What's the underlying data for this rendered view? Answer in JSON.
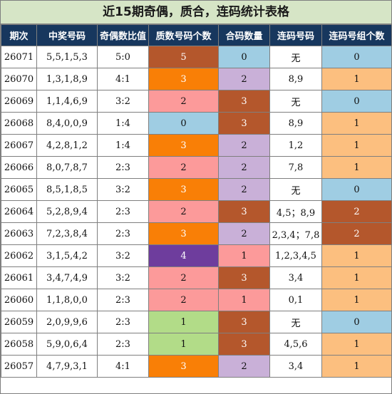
{
  "title": "近15期奇偶，质合，连码统计表格",
  "headers": [
    "期次",
    "中奖号码",
    "奇偶数比值",
    "质数号码个数",
    "合码数量",
    "连码号码",
    "连码号组个数"
  ],
  "colors": {
    "brown": "#b4572c",
    "orange": "#f97f06",
    "pink": "#fc9a9a",
    "lightblue": "#9fcde3",
    "lavender": "#c9b0d8",
    "peach": "#fcbf7f",
    "purple": "#6e3d9d",
    "green": "#b2dc88",
    "white": "#ffffff",
    "header_bg": "#17375e",
    "title_bg": "#d6e5c6"
  },
  "rows": [
    {
      "period": "26071",
      "numbers": "5,5,1,5,3",
      "ratio": "5:0",
      "prime": "5",
      "prime_color": "brown",
      "composite": "0",
      "composite_color": "lightblue",
      "consec": "无",
      "groups": "0",
      "groups_color": "lightblue"
    },
    {
      "period": "26070",
      "numbers": "1,3,1,8,9",
      "ratio": "4:1",
      "prime": "3",
      "prime_color": "orange",
      "composite": "2",
      "composite_color": "lavender",
      "consec": "8,9",
      "groups": "1",
      "groups_color": "peach"
    },
    {
      "period": "26069",
      "numbers": "1,1,4,6,9",
      "ratio": "3:2",
      "prime": "2",
      "prime_color": "pink",
      "composite": "3",
      "composite_color": "brown",
      "consec": "无",
      "groups": "0",
      "groups_color": "lightblue"
    },
    {
      "period": "26068",
      "numbers": "8,4,0,0,9",
      "ratio": "1:4",
      "prime": "0",
      "prime_color": "lightblue",
      "composite": "3",
      "composite_color": "brown",
      "consec": "8,9",
      "groups": "1",
      "groups_color": "peach"
    },
    {
      "period": "26067",
      "numbers": "4,2,8,1,2",
      "ratio": "1:4",
      "prime": "3",
      "prime_color": "orange",
      "composite": "2",
      "composite_color": "lavender",
      "consec": "1,2",
      "groups": "1",
      "groups_color": "peach"
    },
    {
      "period": "26066",
      "numbers": "8,0,7,8,7",
      "ratio": "2:3",
      "prime": "2",
      "prime_color": "pink",
      "composite": "2",
      "composite_color": "lavender",
      "consec": "7,8",
      "groups": "1",
      "groups_color": "peach"
    },
    {
      "period": "26065",
      "numbers": "8,5,1,8,5",
      "ratio": "3:2",
      "prime": "3",
      "prime_color": "orange",
      "composite": "2",
      "composite_color": "lavender",
      "consec": "无",
      "groups": "0",
      "groups_color": "lightblue"
    },
    {
      "period": "26064",
      "numbers": "5,2,8,9,4",
      "ratio": "2:3",
      "prime": "2",
      "prime_color": "pink",
      "composite": "3",
      "composite_color": "brown",
      "consec": "4,5；8,9",
      "groups": "2",
      "groups_color": "brown"
    },
    {
      "period": "26063",
      "numbers": "7,2,3,8,4",
      "ratio": "2:3",
      "prime": "3",
      "prime_color": "orange",
      "composite": "2",
      "composite_color": "lavender",
      "consec": "2,3,4；7,8",
      "groups": "2",
      "groups_color": "brown"
    },
    {
      "period": "26062",
      "numbers": "3,1,5,4,2",
      "ratio": "3:2",
      "prime": "4",
      "prime_color": "purple",
      "composite": "1",
      "composite_color": "pink",
      "consec": "1,2,3,4,5",
      "groups": "1",
      "groups_color": "peach"
    },
    {
      "period": "26061",
      "numbers": "3,4,7,4,9",
      "ratio": "3:2",
      "prime": "2",
      "prime_color": "pink",
      "composite": "3",
      "composite_color": "brown",
      "consec": "3,4",
      "groups": "1",
      "groups_color": "peach"
    },
    {
      "period": "26060",
      "numbers": "1,1,8,0,0",
      "ratio": "2:3",
      "prime": "2",
      "prime_color": "pink",
      "composite": "1",
      "composite_color": "pink",
      "consec": "0,1",
      "groups": "1",
      "groups_color": "peach"
    },
    {
      "period": "26059",
      "numbers": "2,0,9,9,6",
      "ratio": "2:3",
      "prime": "1",
      "prime_color": "green",
      "composite": "3",
      "composite_color": "brown",
      "consec": "无",
      "groups": "0",
      "groups_color": "lightblue"
    },
    {
      "period": "26058",
      "numbers": "5,9,0,6,4",
      "ratio": "2:3",
      "prime": "1",
      "prime_color": "green",
      "composite": "3",
      "composite_color": "brown",
      "consec": "4,5,6",
      "groups": "1",
      "groups_color": "peach"
    },
    {
      "period": "26057",
      "numbers": "4,7,9,3,1",
      "ratio": "4:1",
      "prime": "3",
      "prime_color": "orange",
      "composite": "2",
      "composite_color": "lavender",
      "consec": "3,4",
      "groups": "1",
      "groups_color": "peach"
    }
  ]
}
